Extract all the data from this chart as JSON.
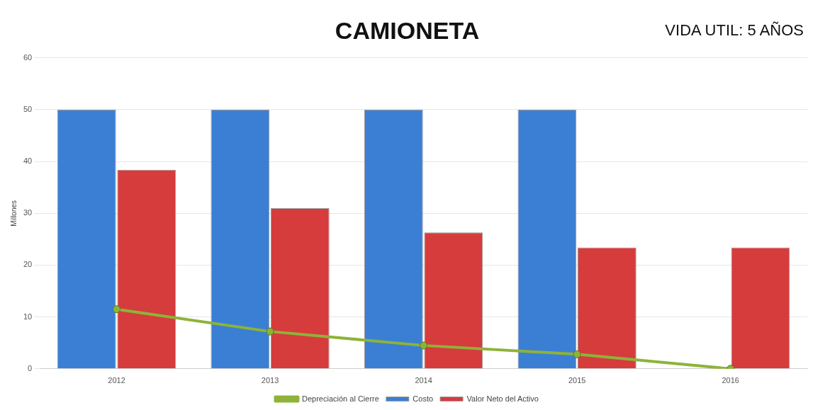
{
  "chart_data": {
    "type": "bar",
    "title": "CAMIONETA",
    "annotations": [
      "VIDA UTIL:   5 AÑOS"
    ],
    "ylabel": "Millones",
    "categories": [
      "2012",
      "2013",
      "2014",
      "2015",
      "2016"
    ],
    "series": [
      {
        "name": "Costo",
        "color": "#3b7fd4",
        "values": [
          50,
          50,
          50,
          50,
          null
        ]
      },
      {
        "name": "Valor Neto del Activo",
        "color": "#d63c3c",
        "values": [
          38.4,
          31,
          26.3,
          23.4,
          23.4
        ]
      },
      {
        "name": "Depreciación al Cierre",
        "type": "line",
        "color": "#8db33a",
        "marker": "circle",
        "values": [
          11.5,
          7.2,
          4.5,
          2.8,
          0
        ]
      }
    ],
    "ylim": [
      0,
      60
    ],
    "yticks": [
      0,
      10,
      20,
      30,
      40,
      50,
      60
    ],
    "grid": "y",
    "legend": "bottom"
  }
}
